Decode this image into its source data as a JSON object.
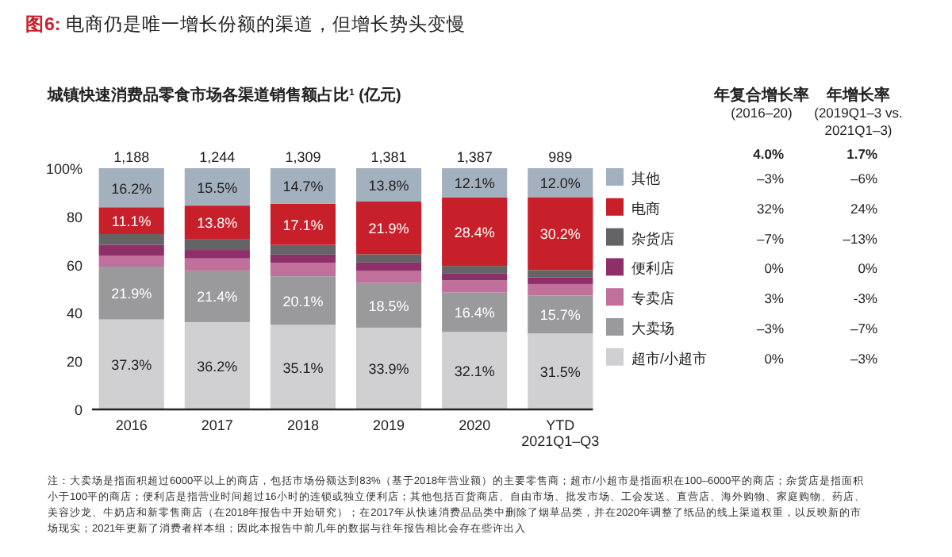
{
  "chart_data": {
    "type": "bar",
    "stacked": true,
    "title": "图6: 电商仍是唯一增长份额的渠道，但增长势头变慢",
    "subtitle": "城镇快速消费品零食市场各渠道销售额占比$^{1}$ (亿元)",
    "categories": [
      "2016",
      "2017",
      "2018",
      "2019",
      "2020",
      "YTD\n2021Q1–Q3"
    ],
    "ylim": [
      0,
      100
    ],
    "yticks": [
      0,
      20,
      40,
      60,
      80,
      {
        "value": 100,
        "label": "100%"
      }
    ],
    "legend": "right",
    "grid": false,
    "series": [
      {
        "name": "超市/小超市",
        "color": "#d0d0d2",
        "values": [
          37.3,
          36.2,
          35.1,
          33.9,
          32.1,
          31.5
        ],
        "value_labels": [
          "37.3%",
          "36.2%",
          "35.1%",
          "33.9%",
          "32.1%",
          "31.5%"
        ]
      },
      {
        "name": "大卖场",
        "color": "#9a9a9c",
        "values": [
          21.9,
          21.4,
          20.1,
          18.5,
          16.4,
          15.7
        ],
        "value_labels": [
          "21.9%",
          "21.4%",
          "20.1%",
          "18.5%",
          "16.4%",
          "15.7%"
        ]
      },
      {
        "name": "专卖店",
        "color": "#c0709a",
        "values": [
          4.6,
          5.0,
          5.5,
          5.0,
          5.0,
          4.8
        ],
        "value_labels": [
          null,
          null,
          null,
          null,
          null,
          null
        ]
      },
      {
        "name": "便利店",
        "color": "#8e2f6a",
        "values": [
          4.5,
          3.5,
          3.5,
          3.5,
          2.8,
          2.8
        ],
        "value_labels": [
          null,
          null,
          null,
          null,
          null,
          null
        ]
      },
      {
        "name": "杂货店",
        "color": "#646466",
        "values": [
          4.4,
          4.6,
          4.0,
          3.4,
          3.2,
          3.0
        ],
        "value_labels": [
          null,
          null,
          null,
          null,
          null,
          null
        ]
      },
      {
        "name": "电商",
        "color": "#c8202a",
        "values": [
          11.1,
          13.8,
          17.1,
          21.9,
          28.4,
          30.2
        ],
        "value_labels": [
          "11.1%",
          "13.8%",
          "17.1%",
          "21.9%",
          "28.4%",
          "30.2%"
        ]
      },
      {
        "name": "其他",
        "color": "#a3b0bd",
        "values": [
          16.2,
          15.5,
          14.7,
          13.8,
          12.1,
          12.0
        ],
        "value_labels": [
          "16.2%",
          "15.5%",
          "14.7%",
          "13.8%",
          "12.1%",
          "12.0%"
        ]
      }
    ],
    "annotations": [
      "注：大卖场是指面积超过6000平以上的商店，包括市场份额达到83%（基于2018年营业额）的主要零售商；超市/小超市是指面积在100–6000平的商店；杂货店是指面积小于100平的商店；便利店是指营业时间超过16小时的连锁或独立便利店；其他包括百货商店、自由市场、批发市场、工会发送、直营店、海外购物、家庭购物、药店、美容沙龙、牛奶店和新零售商店（在2018年报告中开始研究）；在2017年从快速消费品品类中删除了烟草品类，并在2020年调整了纸品的线上渠道权重，以反映新的市场现实；2021年更新了消费者样本组；因此本报告中前几年的数据与往年报告相比会存在些许出入",
      "年复合增长率\n(2016–20)",
      "年增长率\n(2019Q1–3 vs.\n2021Q1–3)",
      "4.0%",
      "1.7%",
      "–3%",
      "–6%",
      "32%",
      "24%",
      "–7%",
      "–13%",
      "0%",
      "0%",
      "3%",
      "-3%",
      "–3%",
      "–7%",
      "0%",
      "–3%",
      {
        "text": "1,188",
        "x": "2016",
        "y": 100
      },
      {
        "text": "1,244",
        "x": "2017",
        "y": 100
      },
      {
        "text": "1,309",
        "x": "2018",
        "y": 100
      },
      {
        "text": "1,381",
        "x": "2019",
        "y": 100
      },
      {
        "text": "1,387",
        "x": "2020",
        "y": 100
      },
      {
        "text": "989",
        "x": "YTD\n2021Q1–Q3",
        "y": 100
      }
    ]
  }
}
